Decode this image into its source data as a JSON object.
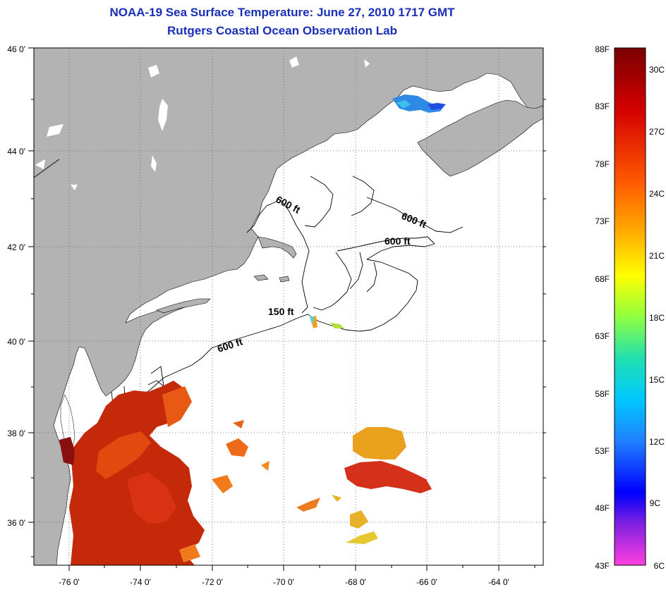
{
  "title": "NOAA-19 Sea Surface Temperature:  June 27, 2010 1717 GMT",
  "subtitle": "Rutgers Coastal Ocean Observation Lab",
  "colors": {
    "title": "#1a2fb8",
    "land": "#b3b3b3",
    "water": "#ffffff"
  },
  "map": {
    "lon_range": [
      -77,
      -63
    ],
    "lat_range": [
      35,
      46
    ],
    "lat_labels": [
      "46 0'",
      "44 0'",
      "42 0'",
      "40 0'",
      "38 0'",
      "36 0'"
    ],
    "lon_labels": [
      "-76 0'",
      "-74 0'",
      "-72 0'",
      "-70 0'",
      "-68 0'",
      "-66 0'",
      "-64 0'"
    ],
    "contour_labels": [
      {
        "text": "600 ft",
        "lon": -69.7,
        "lat": 42.9,
        "rotate": 28
      },
      {
        "text": "600 ft",
        "lon": -66.6,
        "lat": 42.5,
        "rotate": 22
      },
      {
        "text": "600 ft",
        "lon": -67.0,
        "lat": 42.1,
        "rotate": 0
      },
      {
        "text": "150 ft",
        "lon": -69.9,
        "lat": 40.6,
        "rotate": 0
      },
      {
        "text": "600 ft",
        "lon": -71.6,
        "lat": 39.7,
        "rotate": -18
      }
    ]
  },
  "colorbar": {
    "fahrenheit_labels": [
      "88F",
      "83F",
      "78F",
      "73F",
      "68F",
      "63F",
      "58F",
      "53F",
      "48F",
      "43F"
    ],
    "celsius_labels": [
      "30C",
      "27C",
      "24C",
      "21C",
      "18C",
      "15C",
      "12C",
      "9C",
      "6C"
    ]
  }
}
